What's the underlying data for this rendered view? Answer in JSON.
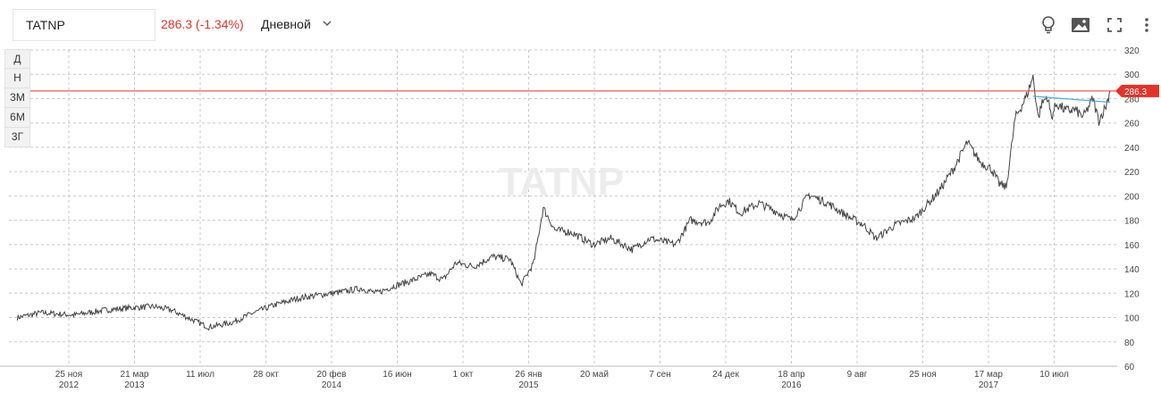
{
  "header": {
    "ticker": "TATNP",
    "price_text": "286.3 (-1.34%)",
    "interval_label": "Дневной"
  },
  "toolbar": {
    "icons": [
      "lightbulb-icon",
      "image-icon",
      "fullscreen-icon",
      "more-vertical-icon"
    ]
  },
  "range_buttons": [
    "Д",
    "Н",
    "3М",
    "6М",
    "3Г"
  ],
  "colors": {
    "price_down": "#e0342b",
    "line": "#444444",
    "trend": "#4aa8d8",
    "grid": "#c8c8c8",
    "watermark": "#ececec"
  },
  "watermark": {
    "ticker": "TATNP"
  },
  "chart_data": {
    "type": "line",
    "y_axis": {
      "min": 60,
      "max": 320,
      "side": "right",
      "ticks": [
        60,
        80,
        100,
        120,
        140,
        160,
        180,
        200,
        220,
        240,
        260,
        280,
        300,
        320
      ]
    },
    "x_ticks": [
      {
        "day": "25 ноя",
        "year": "2012"
      },
      {
        "day": "21 мар",
        "year": "2013"
      },
      {
        "day": "11 июл",
        "year": ""
      },
      {
        "day": "28 окт",
        "year": ""
      },
      {
        "day": "20 фев",
        "year": "2014"
      },
      {
        "day": "16 июн",
        "year": ""
      },
      {
        "day": "1 окт",
        "year": ""
      },
      {
        "day": "26 янв",
        "year": "2015"
      },
      {
        "day": "20 май",
        "year": ""
      },
      {
        "day": "7 сен",
        "year": ""
      },
      {
        "day": "24 дек",
        "year": ""
      },
      {
        "day": "18 апр",
        "year": "2016"
      },
      {
        "day": "9 авг",
        "year": ""
      },
      {
        "day": "25 ноя",
        "year": ""
      },
      {
        "day": "17 мар",
        "year": "2017"
      },
      {
        "day": "10 июл",
        "year": ""
      }
    ],
    "grid": true,
    "current_price": 286.3,
    "current_price_label": "286.3",
    "series": [
      {
        "x": [
          "2012-08-22",
          "2012-10-01",
          "2012-11-25",
          "2013-01-15",
          "2013-03-01",
          "2013-04-10",
          "2013-05-10",
          "2013-06-05",
          "2013-07-11",
          "2013-08-20",
          "2013-09-20",
          "2013-10-28",
          "2013-12-10",
          "2014-01-20",
          "2014-02-20",
          "2014-03-25",
          "2014-04-20",
          "2014-05-20",
          "2014-06-16",
          "2014-07-20",
          "2014-08-10",
          "2014-09-01",
          "2014-10-01",
          "2014-11-01",
          "2014-12-01",
          "2014-12-20",
          "2015-01-10",
          "2015-01-26",
          "2015-02-15",
          "2015-03-15",
          "2015-04-20",
          "2015-05-20",
          "2015-06-25",
          "2015-07-25",
          "2015-09-07",
          "2015-10-01",
          "2015-11-01",
          "2015-11-20",
          "2015-12-05",
          "2015-12-24",
          "2016-01-25",
          "2016-02-20",
          "2016-03-20",
          "2016-04-18",
          "2016-05-20",
          "2016-06-20",
          "2016-07-20",
          "2016-08-09",
          "2016-09-10",
          "2016-10-15",
          "2016-11-25",
          "2016-12-20",
          "2017-01-10",
          "2017-02-01",
          "2017-02-20",
          "2017-03-05",
          "2017-03-17",
          "2017-04-01",
          "2017-04-20",
          "2017-05-01",
          "2017-05-10",
          "2017-05-15",
          "2017-05-25",
          "2017-06-01",
          "2017-06-10",
          "2017-06-25",
          "2017-07-10",
          "2017-07-25",
          "2017-08-10",
          "2017-08-20",
          "2017-09-01",
          "2017-09-08"
        ],
        "values": [
          100,
          104,
          102,
          106,
          108,
          109,
          106,
          100,
          92,
          96,
          103,
          110,
          116,
          119,
          121,
          124,
          120,
          126,
          130,
          136,
          131,
          145,
          142,
          150,
          148,
          127,
          145,
          190,
          172,
          170,
          160,
          165,
          156,
          165,
          160,
          180,
          178,
          192,
          196,
          186,
          194,
          188,
          180,
          201,
          194,
          184,
          176,
          165,
          176,
          182,
          205,
          224,
          244,
          228,
          222,
          210,
          207,
          264,
          282,
          298,
          264,
          275,
          282,
          265,
          276,
          270,
          271,
          265,
          280,
          262,
          274,
          286.3
        ]
      }
    ],
    "trendline": {
      "from": [
        "2017-05-01",
        282
      ],
      "to": [
        "2017-09-08",
        277
      ]
    }
  }
}
